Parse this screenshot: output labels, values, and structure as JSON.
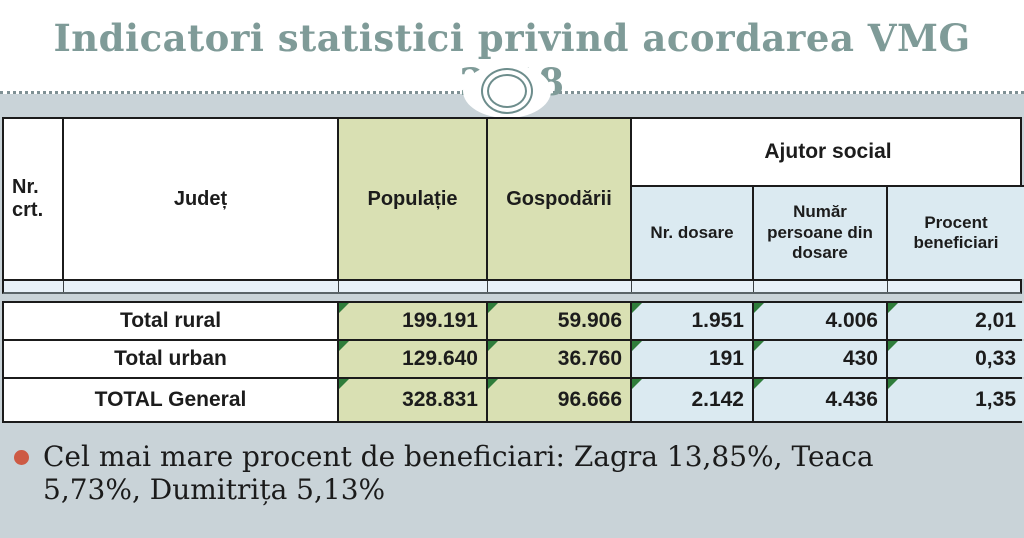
{
  "slide": {
    "title": "Indicatori statistici privind acordarea VMG 2018",
    "bullet_text": "Cel mai mare procent de beneficiari: Zagra 13,85%, Teaca 5,73%, Dumitrița 5,13%"
  },
  "table": {
    "headers": {
      "nr_crt": "Nr. crt.",
      "judet": "Județ",
      "populatie": "Populație",
      "gospodarii": "Gospodării",
      "ajutor_social": "Ajutor social",
      "nr_dosare": "Nr. dosare",
      "numar_persoane": "Număr persoane din dosare",
      "procent_beneficiari": "Procent beneficiari"
    },
    "rows": [
      {
        "label": "Total rural",
        "populatie": "199.191",
        "gospodarii": "59.906",
        "nr_dosare": "1.951",
        "persoane": "4.006",
        "procent": "2,01"
      },
      {
        "label": "Total urban",
        "populatie": "129.640",
        "gospodarii": "36.760",
        "nr_dosare": "191",
        "persoane": "430",
        "procent": "0,33"
      },
      {
        "label": "TOTAL General",
        "populatie": "328.831",
        "gospodarii": "96.666",
        "nr_dosare": "2.142",
        "persoane": "4.436",
        "procent": "1,35"
      }
    ]
  },
  "chart_data": {
    "type": "table",
    "title": "Indicatori statistici privind acordarea VMG 2018",
    "columns": [
      "Nr. crt.",
      "Județ",
      "Populație",
      "Gospodării",
      "Ajutor social - Nr. dosare",
      "Ajutor social - Număr persoane din dosare",
      "Ajutor social - Procent beneficiari"
    ],
    "rows": [
      [
        "",
        "Total rural",
        "199.191",
        "59.906",
        "1.951",
        "4.006",
        "2,01"
      ],
      [
        "",
        "Total urban",
        "129.640",
        "36.760",
        "191",
        "430",
        "0,33"
      ],
      [
        "",
        "TOTAL General",
        "328.831",
        "96.666",
        "2.142",
        "4.436",
        "1,35"
      ]
    ],
    "annotations": [
      "Cel mai mare procent de beneficiari: Zagra 13,85%, Teaca 5,73%, Dumitrița 5,13%"
    ]
  },
  "colors": {
    "title_teal": "#7f9b98",
    "background_gray": "#c9d3d8",
    "cell_green": "#d9e0b3",
    "cell_blue": "#dbeaf1",
    "bullet_red": "#cd5a44",
    "flag_green": "#2f7d3b",
    "border_black": "#1b1b1b"
  }
}
